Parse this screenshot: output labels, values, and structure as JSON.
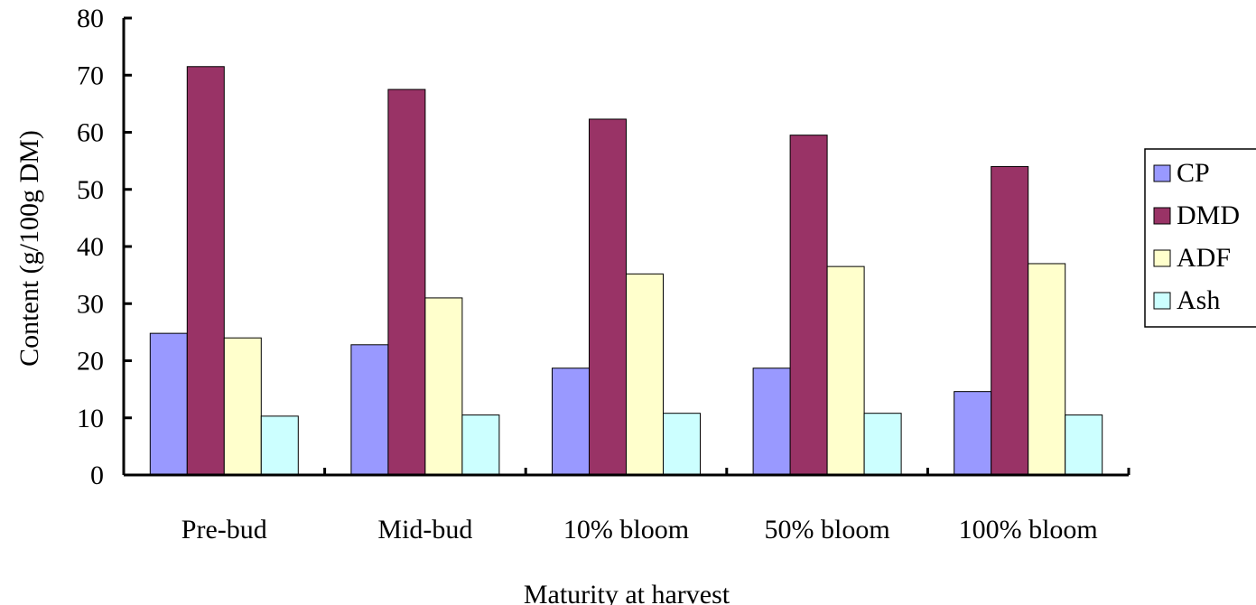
{
  "chart_data": {
    "type": "bar",
    "xlabel": "Maturity at harvest",
    "ylabel": "Content (g/100g DM)",
    "ylim": [
      0,
      80
    ],
    "yticks": [
      0,
      10,
      20,
      30,
      40,
      50,
      60,
      70,
      80
    ],
    "categories": [
      "Pre-bud",
      "Mid-bud",
      "10% bloom",
      "50% bloom",
      "100% bloom"
    ],
    "series": [
      {
        "name": "CP",
        "color": "#9999FF",
        "values": [
          24.8,
          22.8,
          18.7,
          18.7,
          14.6
        ]
      },
      {
        "name": "DMD",
        "color": "#993366",
        "values": [
          71.5,
          67.5,
          62.3,
          59.5,
          54.0
        ]
      },
      {
        "name": "ADF",
        "color": "#FFFFCC",
        "values": [
          24.0,
          31.0,
          35.2,
          36.5,
          37.0
        ]
      },
      {
        "name": "Ash",
        "color": "#CCFFFF",
        "values": [
          10.3,
          10.5,
          10.8,
          10.8,
          10.5
        ]
      }
    ],
    "legend": "right"
  }
}
